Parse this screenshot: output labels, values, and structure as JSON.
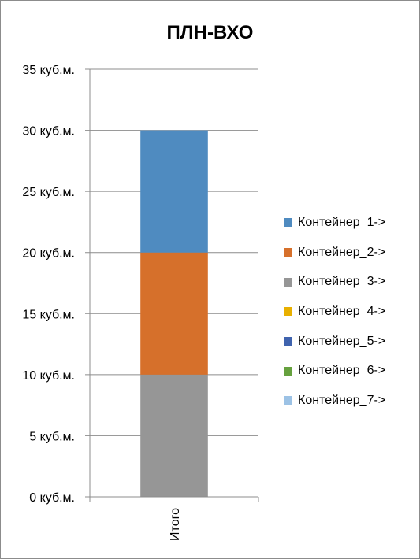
{
  "chart_data": {
    "type": "bar",
    "stacked": true,
    "title": "ПЛН-ВХО",
    "categories": [
      "Итого"
    ],
    "ylim": [
      0,
      35
    ],
    "y_ticks": [
      0,
      5,
      10,
      15,
      20,
      25,
      30,
      35
    ],
    "y_tick_unit": "куб.м.",
    "grid": true,
    "legend_position": "right",
    "series": [
      {
        "name": "Контейнер_3->",
        "values": [
          10
        ],
        "color": "#969696"
      },
      {
        "name": "Контейнер_2->",
        "values": [
          10
        ],
        "color": "#d6702b"
      },
      {
        "name": "Контейнер_1->",
        "values": [
          10
        ],
        "color": "#4f8bc0"
      }
    ],
    "legend": [
      {
        "name": "Контейнер_1->",
        "color": "#4f8bc0"
      },
      {
        "name": "Контейнер_2->",
        "color": "#d6702b"
      },
      {
        "name": "Контейнер_3->",
        "color": "#969696"
      },
      {
        "name": "Контейнер_4->",
        "color": "#e8b000"
      },
      {
        "name": "Контейнер_5->",
        "color": "#3f63ae"
      },
      {
        "name": "Контейнер_6->",
        "color": "#66a13e"
      },
      {
        "name": "Контейнер_7->",
        "color": "#9cc2e5"
      }
    ]
  }
}
